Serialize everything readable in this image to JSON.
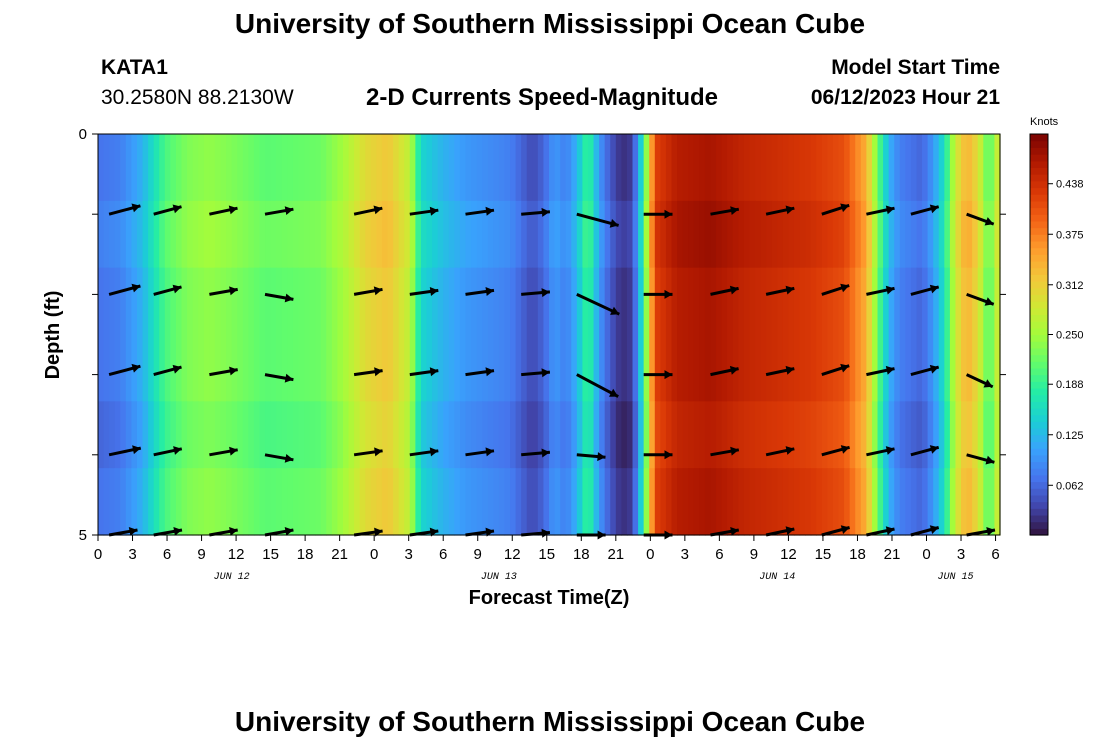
{
  "header": {
    "title": "University of Southern Mississippi Ocean Cube",
    "station_id": "KATA1",
    "station_coords": "30.2580N  88.2130W",
    "subtitle": "2-D Currents Speed-Magnitude",
    "model_start_label": "Model Start Time",
    "model_start_value": "06/12/2023 Hour 21"
  },
  "footer": {
    "title": "University of Southern Mississippi Ocean Cube"
  },
  "colormap": [
    "#30123b",
    "#4145ab",
    "#4675ed",
    "#39a2fc",
    "#1bcfd4",
    "#24eca6",
    "#61fc6c",
    "#a4fc3b",
    "#d1e834",
    "#f3c63a",
    "#fe9b2d",
    "#f36315",
    "#d93806",
    "#b11901",
    "#7a0402"
  ],
  "chart_data": {
    "type": "heatmap",
    "title": "2-D Currents Speed-Magnitude",
    "xlabel": "Forecast Time(Z)",
    "ylabel": "Depth (ft)",
    "x_hours": [
      0,
      81
    ],
    "x_tick_labels": [
      "0",
      "3",
      "6",
      "9",
      "12",
      "15",
      "18",
      "21",
      "0",
      "3",
      "6",
      "9",
      "12",
      "15",
      "18",
      "21",
      "0",
      "3",
      "6",
      "9",
      "12",
      "15",
      "18",
      "21",
      "0",
      "3",
      "6"
    ],
    "date_labels": [
      {
        "label": "JUN 12",
        "hour": 12
      },
      {
        "label": "JUN 13",
        "hour": 36
      },
      {
        "label": "JUN 14",
        "hour": 61
      },
      {
        "label": "JUN 15",
        "hour": 77
      }
    ],
    "depth_range": [
      0,
      5
    ],
    "y_tick_labels": [
      {
        "label": "0",
        "depth": 0
      },
      {
        "label": "5",
        "depth": 5
      }
    ],
    "colorbar": {
      "unit": "Knots",
      "range": [
        0,
        0.5
      ],
      "ticks": [
        0.062,
        0.125,
        0.188,
        0.25,
        0.312,
        0.375,
        0.438
      ]
    },
    "speed_time_profile": [
      [
        0,
        0.07
      ],
      [
        2,
        0.08
      ],
      [
        4,
        0.12
      ],
      [
        5,
        0.16
      ],
      [
        6,
        0.2
      ],
      [
        8,
        0.23
      ],
      [
        10,
        0.24
      ],
      [
        12,
        0.23
      ],
      [
        15,
        0.21
      ],
      [
        20,
        0.22
      ],
      [
        22,
        0.25
      ],
      [
        24,
        0.3
      ],
      [
        26,
        0.32
      ],
      [
        28,
        0.27
      ],
      [
        29,
        0.15
      ],
      [
        31,
        0.12
      ],
      [
        33,
        0.1
      ],
      [
        37,
        0.08
      ],
      [
        39,
        0.04
      ],
      [
        40,
        0.06
      ],
      [
        41,
        0.1
      ],
      [
        42,
        0.08
      ],
      [
        43,
        0.12
      ],
      [
        44,
        0.2
      ],
      [
        45,
        0.1
      ],
      [
        46,
        0.05
      ],
      [
        47,
        0.02
      ],
      [
        48,
        0.03
      ],
      [
        49,
        0.18
      ],
      [
        50,
        0.42
      ],
      [
        52,
        0.46
      ],
      [
        55,
        0.47
      ],
      [
        58,
        0.45
      ],
      [
        61,
        0.44
      ],
      [
        64,
        0.43
      ],
      [
        67,
        0.41
      ],
      [
        69,
        0.34
      ],
      [
        70,
        0.22
      ],
      [
        71,
        0.12
      ],
      [
        72,
        0.08
      ],
      [
        74,
        0.06
      ],
      [
        75,
        0.1
      ],
      [
        76,
        0.16
      ],
      [
        77,
        0.28
      ],
      [
        78,
        0.34
      ],
      [
        79,
        0.3
      ],
      [
        80,
        0.2
      ],
      [
        81,
        0.3
      ]
    ],
    "depth_layer_offsets": [
      0.0,
      0.01,
      0.0,
      0.0,
      -0.01,
      0.0
    ],
    "vector_hours": [
      1,
      5,
      10,
      15,
      23,
      28,
      33,
      38,
      43,
      49,
      55,
      60,
      65,
      69,
      73,
      78
    ],
    "vector_depths": [
      1,
      2,
      3,
      4,
      5
    ],
    "vector_directions_deg": [
      [
        15,
        15,
        12,
        10,
        12,
        8,
        8,
        5,
        -15,
        0,
        10,
        12,
        18,
        12,
        15,
        -20
      ],
      [
        15,
        15,
        10,
        -10,
        10,
        8,
        8,
        5,
        -25,
        0,
        12,
        12,
        18,
        12,
        15,
        -20
      ],
      [
        15,
        15,
        10,
        -10,
        8,
        8,
        8,
        5,
        -28,
        0,
        12,
        12,
        18,
        12,
        15,
        -25
      ],
      [
        12,
        12,
        10,
        -10,
        8,
        8,
        8,
        5,
        -5,
        0,
        10,
        12,
        15,
        12,
        15,
        -15
      ],
      [
        10,
        10,
        10,
        10,
        8,
        8,
        8,
        5,
        0,
        0,
        10,
        12,
        15,
        12,
        15,
        10
      ]
    ],
    "vector_lengths": [
      [
        0.9,
        0.8,
        0.8,
        0.8,
        0.8,
        0.8,
        0.8,
        0.8,
        1.2,
        0.8,
        0.8,
        0.8,
        0.8,
        0.8,
        0.8,
        0.8
      ],
      [
        0.9,
        0.8,
        0.8,
        0.8,
        0.8,
        0.8,
        0.8,
        0.8,
        1.3,
        0.8,
        0.8,
        0.8,
        0.8,
        0.8,
        0.8,
        0.8
      ],
      [
        0.9,
        0.8,
        0.8,
        0.8,
        0.8,
        0.8,
        0.8,
        0.8,
        1.3,
        0.8,
        0.8,
        0.8,
        0.8,
        0.8,
        0.8,
        0.8
      ],
      [
        0.9,
        0.8,
        0.8,
        0.8,
        0.8,
        0.8,
        0.8,
        0.8,
        0.8,
        0.8,
        0.8,
        0.8,
        0.8,
        0.8,
        0.8,
        0.8
      ],
      [
        0.8,
        0.8,
        0.8,
        0.8,
        0.8,
        0.8,
        0.8,
        0.8,
        0.8,
        0.8,
        0.8,
        0.8,
        0.8,
        0.8,
        0.8,
        0.8
      ]
    ]
  }
}
